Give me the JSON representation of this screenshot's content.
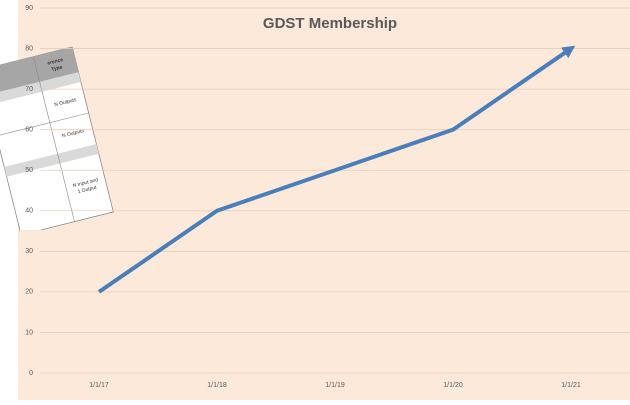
{
  "chart_data": {
    "type": "line",
    "title": "GDST Membership",
    "categories": [
      "1/1/17",
      "1/1/18",
      "1/1/19",
      "1/1/20",
      "1/1/21"
    ],
    "values": [
      20,
      40,
      50,
      60,
      80
    ],
    "color": "#4a7ebb",
    "ylim": [
      0,
      90
    ],
    "yticks": [
      0,
      10,
      20,
      30,
      40,
      50,
      60,
      70,
      80,
      90
    ],
    "grid": true,
    "arrow_end": true
  },
  "background_table": {
    "header": [
      "erence",
      "Type"
    ],
    "cells": [
      "N Outputs",
      "N Outputs",
      "N Input and",
      "1 Output"
    ]
  }
}
